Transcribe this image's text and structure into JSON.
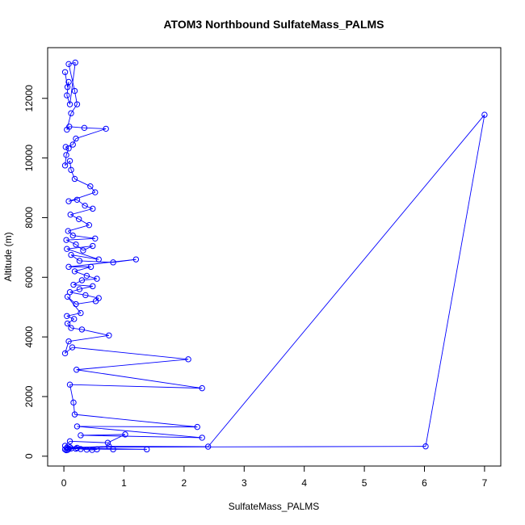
{
  "chart_data": {
    "type": "line",
    "title": "ATOM3 Northbound SulfateMass_PALMS",
    "xlabel": "SulfateMass_PALMS",
    "ylabel": "Altitude (m)",
    "xlim": [
      -0.27,
      7.27
    ],
    "ylim": [
      -330,
      13700
    ],
    "x_ticks": [
      0,
      1,
      2,
      3,
      4,
      5,
      6,
      7
    ],
    "y_ticks": [
      0,
      2000,
      4000,
      6000,
      8000,
      10000,
      12000
    ],
    "grid": false,
    "legend": "none",
    "series": [
      {
        "color": "#0000ff",
        "marker": "open-circle",
        "points": [
          [
            0.02,
            12880
          ],
          [
            0.06,
            12380
          ],
          [
            0.08,
            12550
          ],
          [
            0.05,
            12100
          ],
          [
            0.1,
            11800
          ],
          [
            0.19,
            13200
          ],
          [
            0.08,
            13150
          ],
          [
            0.18,
            12250
          ],
          [
            0.22,
            11800
          ],
          [
            0.12,
            11500
          ],
          [
            0.05,
            10950
          ],
          [
            0.09,
            11050
          ],
          [
            0.34,
            11010
          ],
          [
            0.7,
            10980
          ],
          [
            0.2,
            10650
          ],
          [
            0.15,
            10450
          ],
          [
            0.03,
            10370
          ],
          [
            0.08,
            10320
          ],
          [
            0.04,
            10100
          ],
          [
            0.02,
            9750
          ],
          [
            0.1,
            9900
          ],
          [
            0.12,
            9600
          ],
          [
            0.18,
            9300
          ],
          [
            0.44,
            9050
          ],
          [
            0.52,
            8850
          ],
          [
            0.08,
            8550
          ],
          [
            0.22,
            8600
          ],
          [
            0.35,
            8400
          ],
          [
            0.48,
            8300
          ],
          [
            0.11,
            8100
          ],
          [
            0.25,
            7950
          ],
          [
            0.42,
            7750
          ],
          [
            0.07,
            7550
          ],
          [
            0.15,
            7400
          ],
          [
            0.52,
            7300
          ],
          [
            0.04,
            7250
          ],
          [
            0.2,
            7100
          ],
          [
            0.32,
            6900
          ],
          [
            0.48,
            7050
          ],
          [
            0.05,
            6950
          ],
          [
            0.58,
            6600
          ],
          [
            0.12,
            6750
          ],
          [
            0.26,
            6550
          ],
          [
            0.82,
            6500
          ],
          [
            1.2,
            6600
          ],
          [
            0.08,
            6350
          ],
          [
            0.45,
            6350
          ],
          [
            0.18,
            6200
          ],
          [
            0.38,
            6050
          ],
          [
            0.55,
            5950
          ],
          [
            0.3,
            5900
          ],
          [
            0.16,
            5750
          ],
          [
            0.48,
            5700
          ],
          [
            0.26,
            5600
          ],
          [
            0.1,
            5500
          ],
          [
            0.36,
            5400
          ],
          [
            0.58,
            5300
          ],
          [
            0.53,
            5200
          ],
          [
            0.2,
            5100
          ],
          [
            0.06,
            5350
          ],
          [
            0.28,
            4800
          ],
          [
            0.05,
            4700
          ],
          [
            0.17,
            4600
          ],
          [
            0.06,
            4450
          ],
          [
            0.12,
            4300
          ],
          [
            0.3,
            4250
          ],
          [
            0.75,
            4050
          ],
          [
            0.08,
            3850
          ],
          [
            0.02,
            3450
          ],
          [
            0.14,
            3650
          ],
          [
            2.07,
            3250
          ],
          [
            0.21,
            2900
          ],
          [
            2.3,
            2280
          ],
          [
            0.1,
            2400
          ],
          [
            0.16,
            1800
          ],
          [
            0.18,
            1400
          ],
          [
            2.22,
            980
          ],
          [
            0.22,
            1000
          ],
          [
            2.3,
            620
          ],
          [
            0.28,
            700
          ],
          [
            1.02,
            730
          ],
          [
            0.73,
            450
          ],
          [
            0.1,
            500
          ],
          [
            0.02,
            350
          ],
          [
            0.1,
            300
          ],
          [
            6.02,
            330
          ],
          [
            7.0,
            11450
          ],
          [
            2.4,
            320
          ],
          [
            0.75,
            330
          ],
          [
            0.05,
            280
          ],
          [
            1.38,
            230
          ],
          [
            0.82,
            230
          ],
          [
            0.2,
            250
          ],
          [
            0.02,
            230
          ],
          [
            0.06,
            210
          ],
          [
            0.12,
            260
          ],
          [
            0.28,
            240
          ],
          [
            0.38,
            220
          ],
          [
            0.47,
            210
          ],
          [
            0.55,
            230
          ],
          [
            0.22,
            280
          ],
          [
            0.08,
            240
          ],
          [
            0.04,
            200
          ]
        ]
      }
    ]
  }
}
